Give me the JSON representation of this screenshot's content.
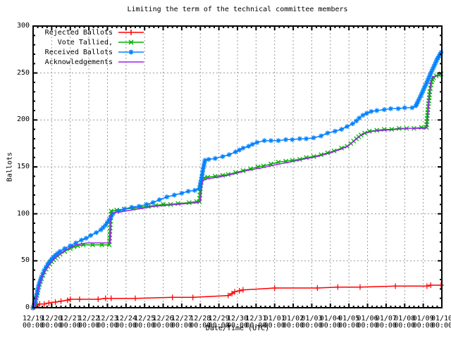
{
  "title": "Limiting the term of the technical committee members",
  "axes": {
    "y_label": "Ballots",
    "x_label": "Date/Time (UTC)",
    "y_ticks": [
      0,
      50,
      100,
      150,
      200,
      250,
      300
    ],
    "x_tick_dates": [
      "12/19",
      "12/20",
      "12/21",
      "12/22",
      "12/23",
      "12/24",
      "12/25",
      "12/26",
      "12/27",
      "12/28",
      "12/29",
      "12/30",
      "12/31",
      "01/01",
      "01/02",
      "01/03",
      "01/04",
      "01/05",
      "01/06",
      "01/07",
      "01/08",
      "01/09",
      "01/10"
    ],
    "x_tick_time": "00:00"
  },
  "colors": {
    "background": "#ffffff",
    "border": "#000000",
    "grid": "#9a9a9a",
    "rejected": "#ff0000",
    "tallied": "#00b000",
    "received": "#0080ff",
    "acknowledgements": "#a020f0"
  },
  "chart_data": {
    "type": "line",
    "title": "Limiting the term of the technical committee members",
    "xlabel": "Date/Time (UTC)",
    "ylabel": "Ballots",
    "ylim": [
      0,
      300
    ],
    "xlim_days": [
      0,
      22
    ],
    "x_unit": "days since 12/19 00:00 UTC",
    "grid": true,
    "legend_position": "top-left",
    "series": [
      {
        "name": "Rejected Ballots",
        "color": "#ff0000",
        "marker": "plus",
        "points": [
          [
            0,
            0
          ],
          [
            0.08,
            1
          ],
          [
            0.2,
            3
          ],
          [
            0.35,
            4
          ],
          [
            0.6,
            4
          ],
          [
            0.85,
            5
          ],
          [
            1.2,
            6
          ],
          [
            1.5,
            7
          ],
          [
            1.85,
            8
          ],
          [
            2.0,
            9
          ],
          [
            2.5,
            9
          ],
          [
            3.5,
            9
          ],
          [
            3.9,
            10
          ],
          [
            4.2,
            10
          ],
          [
            5.5,
            10
          ],
          [
            7.5,
            11
          ],
          [
            8.6,
            11
          ],
          [
            10.5,
            13
          ],
          [
            10.7,
            15
          ],
          [
            10.85,
            17
          ],
          [
            11.1,
            18
          ],
          [
            11.3,
            19
          ],
          [
            13.0,
            21
          ],
          [
            15.3,
            21
          ],
          [
            16.4,
            22
          ],
          [
            17.6,
            22
          ],
          [
            19.5,
            23
          ],
          [
            21.2,
            23
          ],
          [
            21.4,
            24
          ],
          [
            21.96,
            24
          ]
        ]
      },
      {
        "name": "Vote Tallied,",
        "color": "#00b000",
        "marker": "cross",
        "points": [
          [
            0,
            0
          ],
          [
            0.1,
            5
          ],
          [
            0.2,
            13
          ],
          [
            0.3,
            22
          ],
          [
            0.45,
            31
          ],
          [
            0.6,
            38
          ],
          [
            0.8,
            44
          ],
          [
            1.0,
            49
          ],
          [
            1.2,
            53
          ],
          [
            1.45,
            57
          ],
          [
            1.7,
            60
          ],
          [
            2.0,
            63
          ],
          [
            2.2,
            65
          ],
          [
            2.4,
            66
          ],
          [
            2.7,
            67
          ],
          [
            3.2,
            67
          ],
          [
            3.7,
            67
          ],
          [
            4.1,
            67
          ],
          [
            4.15,
            85
          ],
          [
            4.2,
            103
          ],
          [
            4.5,
            104
          ],
          [
            4.9,
            105
          ],
          [
            5.4,
            106
          ],
          [
            5.8,
            107
          ],
          [
            6.2,
            108
          ],
          [
            6.6,
            109
          ],
          [
            7.0,
            110
          ],
          [
            7.4,
            110
          ],
          [
            7.8,
            111
          ],
          [
            8.4,
            112
          ],
          [
            8.8,
            113
          ],
          [
            8.95,
            113
          ],
          [
            9.0,
            127
          ],
          [
            9.1,
            140
          ],
          [
            9.2,
            138
          ],
          [
            9.4,
            139
          ],
          [
            9.8,
            140
          ],
          [
            10.2,
            141
          ],
          [
            10.5,
            142
          ],
          [
            10.9,
            144
          ],
          [
            11.3,
            146
          ],
          [
            11.7,
            148
          ],
          [
            12.1,
            150
          ],
          [
            12.4,
            151
          ],
          [
            12.8,
            153
          ],
          [
            13.2,
            155
          ],
          [
            13.6,
            156
          ],
          [
            13.95,
            157
          ],
          [
            14.35,
            158
          ],
          [
            14.7,
            160
          ],
          [
            15.1,
            161
          ],
          [
            15.5,
            163
          ],
          [
            15.85,
            165
          ],
          [
            16.2,
            167
          ],
          [
            16.6,
            170
          ],
          [
            16.9,
            172
          ],
          [
            17.1,
            175
          ],
          [
            17.4,
            180
          ],
          [
            17.65,
            184
          ],
          [
            17.85,
            186
          ],
          [
            18.1,
            188
          ],
          [
            18.5,
            189
          ],
          [
            18.9,
            190
          ],
          [
            19.3,
            190
          ],
          [
            19.7,
            191
          ],
          [
            20.1,
            191
          ],
          [
            20.5,
            191
          ],
          [
            20.9,
            192
          ],
          [
            21.17,
            192
          ],
          [
            21.25,
            211
          ],
          [
            21.35,
            230
          ],
          [
            21.45,
            241
          ],
          [
            21.55,
            245
          ],
          [
            21.7,
            247
          ],
          [
            21.85,
            248
          ],
          [
            21.96,
            249
          ]
        ]
      },
      {
        "name": "Received Ballots",
        "color": "#0080ff",
        "marker": "star",
        "points": [
          [
            0,
            0
          ],
          [
            0.1,
            6
          ],
          [
            0.2,
            14
          ],
          [
            0.3,
            24
          ],
          [
            0.45,
            33
          ],
          [
            0.6,
            40
          ],
          [
            0.8,
            47
          ],
          [
            1.0,
            52
          ],
          [
            1.2,
            56
          ],
          [
            1.45,
            60
          ],
          [
            1.7,
            63
          ],
          [
            2.0,
            66
          ],
          [
            2.3,
            69
          ],
          [
            2.6,
            72
          ],
          [
            2.85,
            74
          ],
          [
            3.1,
            77
          ],
          [
            3.4,
            80
          ],
          [
            3.65,
            83
          ],
          [
            3.9,
            88
          ],
          [
            4.1,
            94
          ],
          [
            4.3,
            100
          ],
          [
            4.6,
            103
          ],
          [
            4.9,
            105
          ],
          [
            5.3,
            107
          ],
          [
            5.7,
            108
          ],
          [
            6.1,
            110
          ],
          [
            6.45,
            112
          ],
          [
            6.8,
            115
          ],
          [
            7.2,
            118
          ],
          [
            7.6,
            120
          ],
          [
            8.0,
            122
          ],
          [
            8.35,
            124
          ],
          [
            8.7,
            125
          ],
          [
            8.95,
            127
          ],
          [
            9.05,
            136
          ],
          [
            9.15,
            148
          ],
          [
            9.25,
            157
          ],
          [
            9.45,
            158
          ],
          [
            9.8,
            159
          ],
          [
            10.2,
            161
          ],
          [
            10.55,
            163
          ],
          [
            10.9,
            166
          ],
          [
            11.3,
            170
          ],
          [
            11.6,
            172
          ],
          [
            11.8,
            174
          ],
          [
            12.05,
            176
          ],
          [
            12.45,
            178
          ],
          [
            12.8,
            178
          ],
          [
            13.2,
            178
          ],
          [
            13.6,
            179
          ],
          [
            13.95,
            179
          ],
          [
            14.35,
            180
          ],
          [
            14.7,
            180
          ],
          [
            15.1,
            181
          ],
          [
            15.5,
            183
          ],
          [
            15.85,
            186
          ],
          [
            16.25,
            188
          ],
          [
            16.6,
            190
          ],
          [
            16.9,
            193
          ],
          [
            17.2,
            196
          ],
          [
            17.4,
            199
          ],
          [
            17.55,
            202
          ],
          [
            17.75,
            205
          ],
          [
            17.95,
            207
          ],
          [
            18.2,
            209
          ],
          [
            18.5,
            210
          ],
          [
            18.9,
            211
          ],
          [
            19.25,
            212
          ],
          [
            19.65,
            212
          ],
          [
            20.0,
            213
          ],
          [
            20.4,
            213
          ],
          [
            20.6,
            215
          ],
          [
            20.7,
            219
          ],
          [
            20.82,
            224
          ],
          [
            20.94,
            229
          ],
          [
            21.05,
            234
          ],
          [
            21.17,
            239
          ],
          [
            21.28,
            244
          ],
          [
            21.39,
            249
          ],
          [
            21.5,
            254
          ],
          [
            21.62,
            259
          ],
          [
            21.73,
            264
          ],
          [
            21.85,
            268
          ],
          [
            21.96,
            272
          ]
        ]
      },
      {
        "name": "Acknowledgements",
        "color": "#a020f0",
        "marker": "none",
        "points": [
          [
            0,
            0
          ],
          [
            0.1,
            5
          ],
          [
            0.2,
            13
          ],
          [
            0.3,
            22
          ],
          [
            0.45,
            31
          ],
          [
            0.6,
            38
          ],
          [
            0.8,
            44
          ],
          [
            1.0,
            49
          ],
          [
            1.2,
            53
          ],
          [
            1.45,
            57
          ],
          [
            1.7,
            61
          ],
          [
            2.0,
            64
          ],
          [
            2.3,
            67
          ],
          [
            2.6,
            68
          ],
          [
            2.95,
            69
          ],
          [
            4.15,
            69
          ],
          [
            4.2,
            100
          ],
          [
            4.3,
            101
          ],
          [
            4.7,
            102
          ],
          [
            5.3,
            104
          ],
          [
            5.9,
            106
          ],
          [
            6.5,
            108
          ],
          [
            7.1,
            109
          ],
          [
            7.7,
            110
          ],
          [
            8.3,
            111
          ],
          [
            8.8,
            112
          ],
          [
            9.0,
            113
          ],
          [
            9.1,
            135
          ],
          [
            9.3,
            137
          ],
          [
            9.9,
            139
          ],
          [
            10.7,
            142
          ],
          [
            11.5,
            146
          ],
          [
            12.3,
            149
          ],
          [
            13.0,
            152
          ],
          [
            13.8,
            155
          ],
          [
            14.5,
            158
          ],
          [
            15.3,
            161
          ],
          [
            16.0,
            165
          ],
          [
            16.6,
            169
          ],
          [
            17.0,
            173
          ],
          [
            17.3,
            178
          ],
          [
            17.6,
            183
          ],
          [
            17.9,
            186
          ],
          [
            18.3,
            188
          ],
          [
            18.9,
            189
          ],
          [
            19.5,
            190
          ],
          [
            20.2,
            191
          ],
          [
            21.1,
            191
          ],
          [
            21.2,
            192
          ],
          [
            21.3,
            220
          ],
          [
            21.4,
            240
          ],
          [
            21.5,
            246
          ],
          [
            21.7,
            247
          ],
          [
            21.96,
            248
          ]
        ]
      }
    ]
  }
}
